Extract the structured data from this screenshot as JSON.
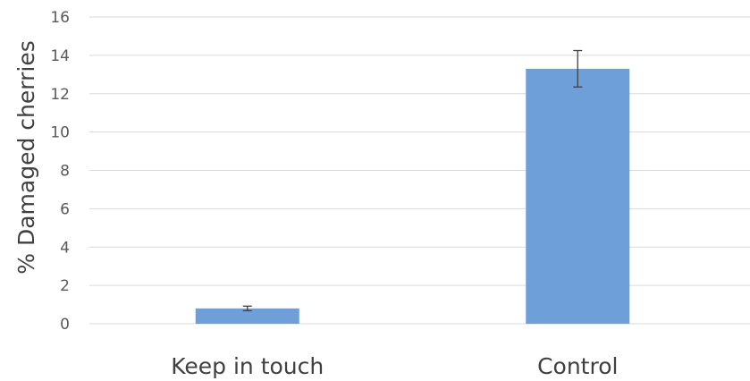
{
  "chart_data": {
    "type": "bar",
    "title": "",
    "xlabel": "",
    "ylabel": "% Damaged cherries",
    "categories": [
      "Keep in touch",
      "Control"
    ],
    "values": [
      0.8,
      13.3
    ],
    "error_bars": [
      0.12,
      0.95
    ],
    "ylim": [
      0,
      16
    ],
    "yticks": [
      "0",
      "2",
      "4",
      "6",
      "8",
      "10",
      "12",
      "14",
      "16"
    ],
    "grid": true,
    "legend": "none",
    "colors": {
      "bar": "#6f9fd8",
      "grid": "#d9d9d9",
      "error_bar": "#404040"
    }
  }
}
